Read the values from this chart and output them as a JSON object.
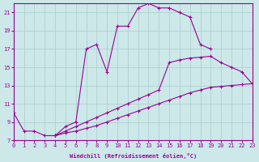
{
  "xlabel": "Windchill (Refroidissement éolien,°C)",
  "xlim": [
    0,
    23
  ],
  "ylim": [
    7,
    22
  ],
  "yticks": [
    7,
    9,
    11,
    13,
    15,
    17,
    19,
    21
  ],
  "xticks": [
    0,
    1,
    2,
    3,
    4,
    5,
    6,
    7,
    8,
    9,
    10,
    11,
    12,
    13,
    14,
    15,
    16,
    17,
    18,
    19,
    20,
    21,
    22,
    23
  ],
  "bg_color": "#cce8e8",
  "line_color": "#990099",
  "grid_color": "#aacccc",
  "curve1_x": [
    0,
    1,
    2,
    3,
    4,
    5,
    6,
    7,
    8,
    9,
    10,
    11,
    12,
    13,
    14,
    15,
    16,
    17,
    18,
    19
  ],
  "curve1_y": [
    10,
    8.0,
    8.0,
    7.5,
    7.5,
    8.5,
    9.0,
    17.0,
    17.5,
    14.5,
    19.5,
    19.5,
    21.5,
    22.0,
    21.5,
    21.5,
    21.0,
    20.5,
    17.5,
    17.0
  ],
  "curve2_x": [
    4,
    5,
    6,
    7,
    8,
    9,
    10,
    11,
    12,
    13,
    14,
    15,
    16,
    17,
    18,
    19,
    20,
    21,
    22,
    23
  ],
  "curve2_y": [
    7.5,
    8.0,
    8.5,
    9.0,
    9.5,
    10.0,
    10.5,
    11.0,
    11.5,
    12.0,
    12.5,
    15.5,
    15.8,
    16.0,
    16.1,
    16.2,
    15.5,
    15.0,
    14.5,
    13.2
  ],
  "curve3_x": [
    4,
    5,
    6,
    7,
    8,
    9,
    10,
    11,
    12,
    13,
    14,
    15,
    16,
    17,
    18,
    19,
    20,
    21,
    22,
    23
  ],
  "curve3_y": [
    7.5,
    7.8,
    8.0,
    8.3,
    8.6,
    9.0,
    9.4,
    9.8,
    10.2,
    10.6,
    11.0,
    11.4,
    11.8,
    12.2,
    12.5,
    12.8,
    12.9,
    13.0,
    13.1,
    13.2
  ]
}
